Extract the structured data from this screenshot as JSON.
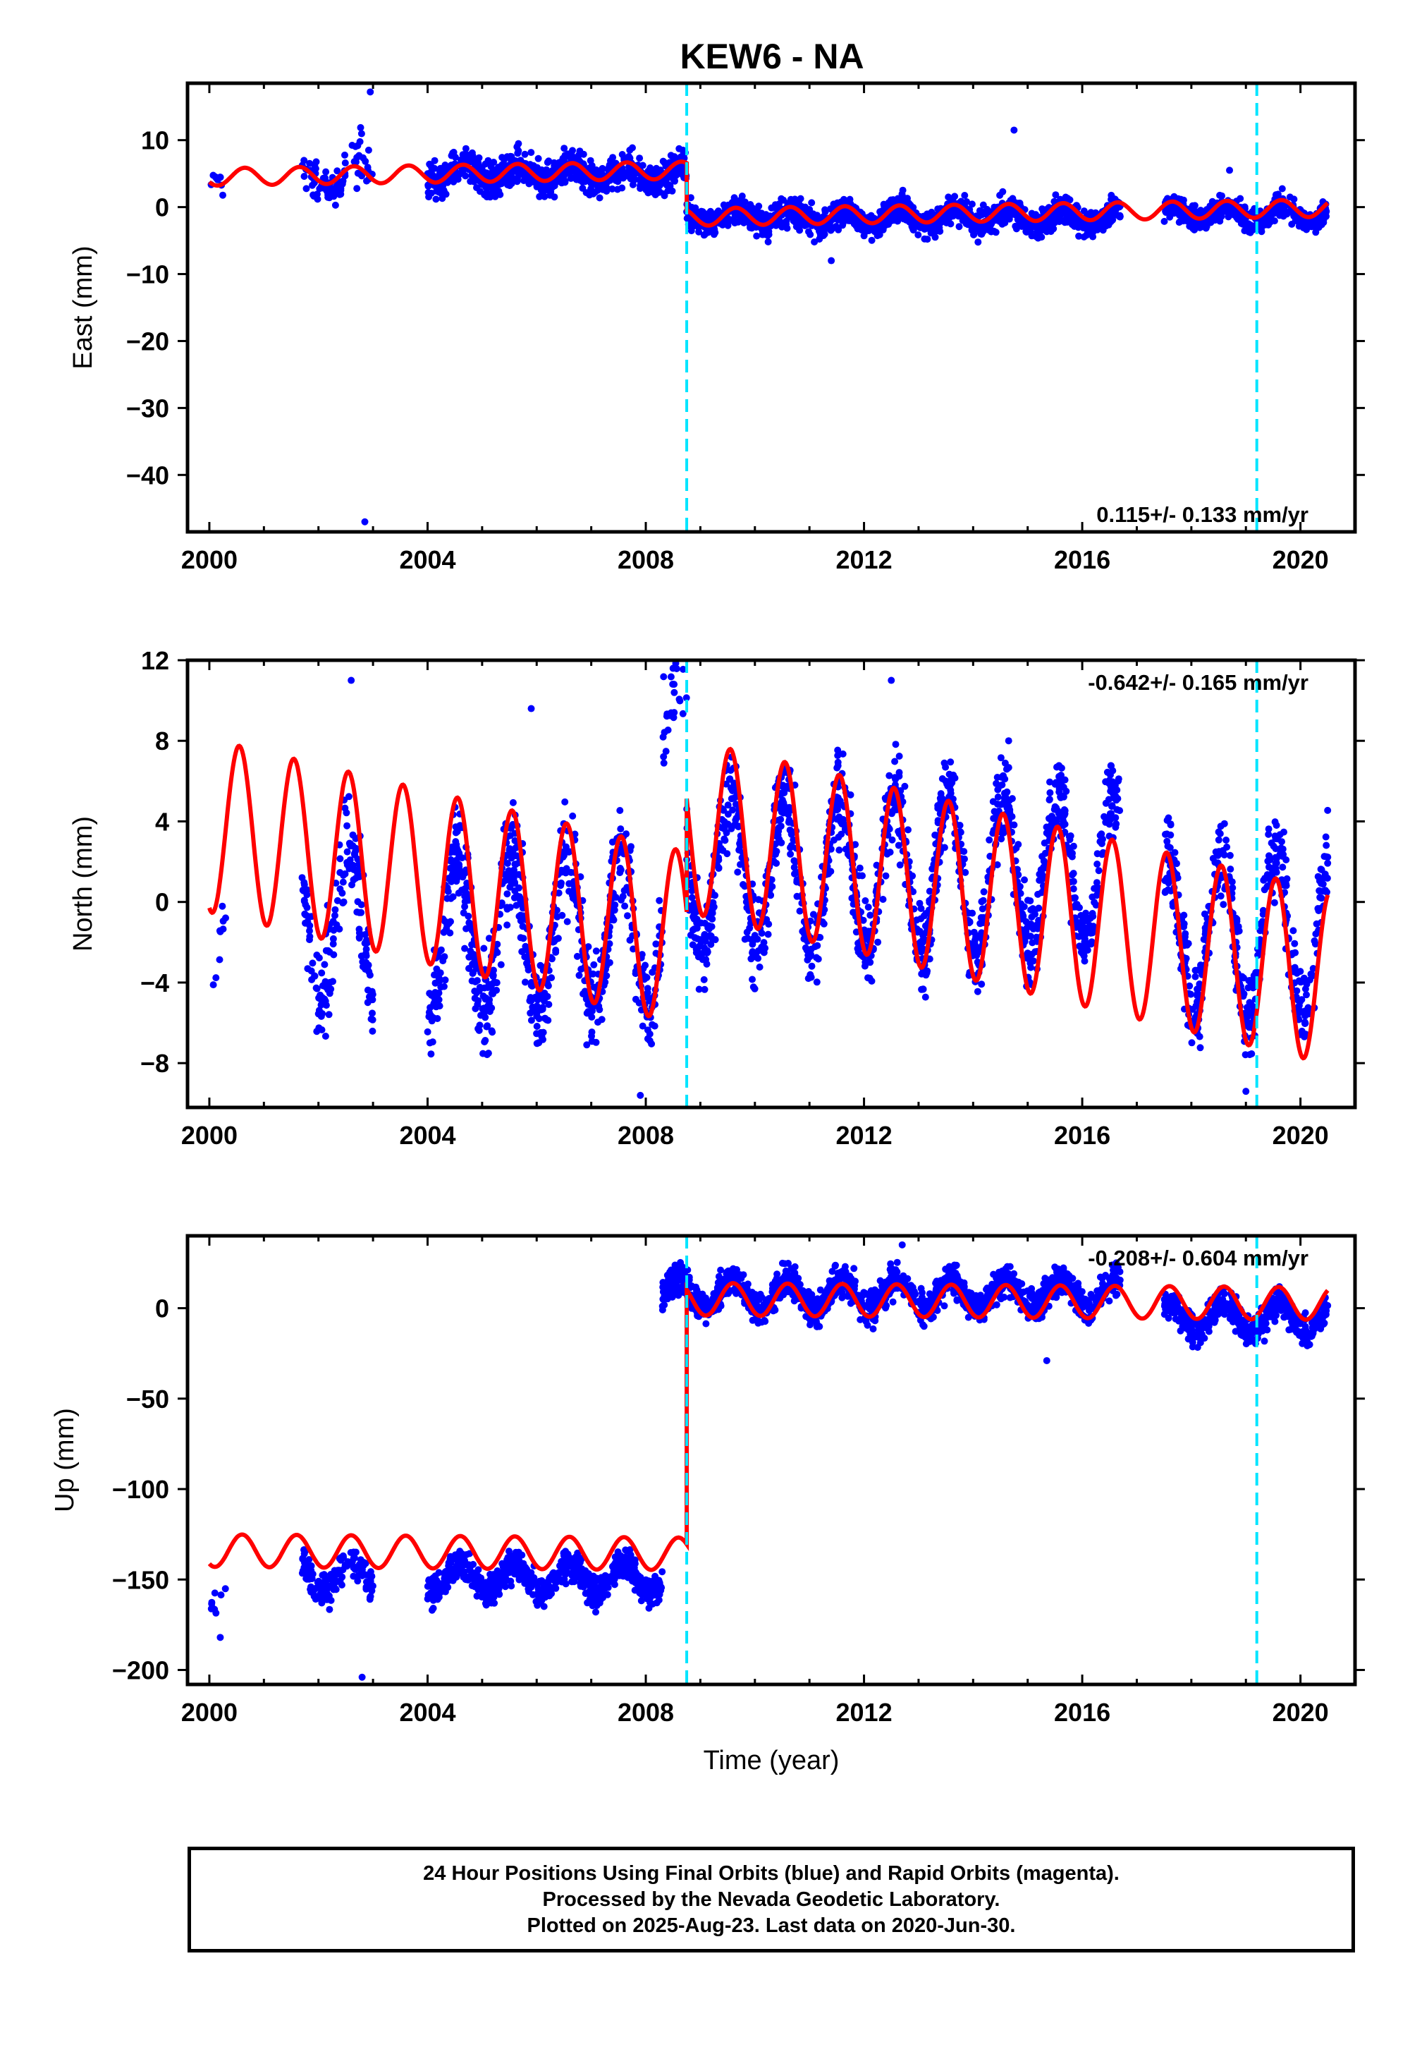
{
  "title": "KEW6 - NA",
  "colors": {
    "data": "#0000ff",
    "model": "#ff0000",
    "offset": "#00e5ff",
    "frame": "#000000"
  },
  "chart_data": [
    {
      "type": "scatter",
      "ylabel": "East (mm)",
      "xlabel": "",
      "xlim": [
        1999.6,
        2021.0
      ],
      "ylim": [
        -48.5,
        18.5
      ],
      "xticks": [
        2000,
        2004,
        2008,
        2012,
        2016,
        2020
      ],
      "xtick_labels": [
        "2000",
        "2004",
        "2008",
        "2012",
        "2016",
        "2020"
      ],
      "yticks": [
        10,
        0,
        -10,
        -20,
        -30,
        -40
      ],
      "ytick_labels": [
        "10",
        "0",
        "−10",
        "−20",
        "−30",
        "−40"
      ],
      "rate_label": "0.115+/- 0.133 mm/yr",
      "offsets": [
        2008.75,
        2019.2
      ],
      "model_segments": [
        {
          "start": 2000.0,
          "end": 2008.75,
          "base": 4.5,
          "trend": 0.115,
          "amplitude": 1.3,
          "phase": 0.4
        },
        {
          "start": 2008.75,
          "end": 2020.5,
          "base": -1.5,
          "trend": 0.115,
          "amplitude": 1.3,
          "phase": 0.4
        }
      ],
      "data_segments": [
        {
          "start": 2000.0,
          "end": 2000.3,
          "center": 4.5,
          "spread": 1.5,
          "density": 30
        },
        {
          "start": 2001.7,
          "end": 2002.5,
          "center": 4.0,
          "spread": 2.0,
          "density": 80
        },
        {
          "start": 2002.6,
          "end": 2003.0,
          "center": 6.5,
          "spread": 3.0,
          "density": 60
        },
        {
          "start": 2004.0,
          "end": 2008.75,
          "center": 5.0,
          "spread": 1.8,
          "density": 160
        },
        {
          "start": 2008.75,
          "end": 2016.7,
          "center": -1.5,
          "spread": 1.5,
          "density": 160
        },
        {
          "start": 2017.5,
          "end": 2020.5,
          "center": -1.0,
          "spread": 1.3,
          "density": 150
        }
      ],
      "outliers": [
        {
          "x": 2002.85,
          "y": -47.0
        },
        {
          "x": 2002.95,
          "y": 17.2
        },
        {
          "x": 2014.75,
          "y": 11.5
        },
        {
          "x": 2011.4,
          "y": -8.0
        },
        {
          "x": 2018.7,
          "y": 5.5
        }
      ]
    },
    {
      "type": "scatter",
      "ylabel": "North (mm)",
      "xlabel": "",
      "xlim": [
        1999.6,
        2021.0
      ],
      "ylim": [
        -10.2,
        12.0
      ],
      "xticks": [
        2000,
        2004,
        2008,
        2012,
        2016,
        2020
      ],
      "xtick_labels": [
        "2000",
        "2004",
        "2008",
        "2012",
        "2016",
        "2020"
      ],
      "yticks": [
        12,
        8,
        4,
        0,
        -4,
        -8
      ],
      "ytick_labels": [
        "12",
        "8",
        "4",
        "0",
        "−4",
        "−8"
      ],
      "rate_label": "-0.642+/- 0.165 mm/yr",
      "offsets": [
        2008.75,
        2019.2
      ],
      "model_segments": [
        {
          "start": 2000.0,
          "end": 2008.75,
          "base": 3.8,
          "trend": -0.642,
          "amplitude": 4.3,
          "phase": 0.3
        },
        {
          "start": 2008.75,
          "end": 2020.5,
          "base": 3.8,
          "trend": -0.642,
          "amplitude": 4.3,
          "phase": 0.3
        }
      ],
      "data_segments": [
        {
          "start": 2000.0,
          "end": 2000.3,
          "center": 0.0,
          "spread": 1.5,
          "density": 30
        },
        {
          "start": 2001.7,
          "end": 2003.0,
          "center": -1.0,
          "spread": 1.8,
          "density": 120
        },
        {
          "start": 2004.0,
          "end": 2008.3,
          "center": -1.5,
          "spread": 1.8,
          "density": 160
        },
        {
          "start": 2008.3,
          "end": 2008.75,
          "center": 7.5,
          "spread": 1.5,
          "density": 60
        },
        {
          "start": 2008.75,
          "end": 2016.7,
          "center": 1.5,
          "spread": 1.6,
          "density": 160
        },
        {
          "start": 2017.5,
          "end": 2020.5,
          "center": -1.5,
          "spread": 1.6,
          "density": 150
        }
      ],
      "outliers": [
        {
          "x": 2002.6,
          "y": 11.0
        },
        {
          "x": 2008.5,
          "y": 11.6
        },
        {
          "x": 2012.5,
          "y": 11.0
        },
        {
          "x": 2005.9,
          "y": 9.6
        },
        {
          "x": 2007.9,
          "y": -9.6
        },
        {
          "x": 2019.0,
          "y": -9.4
        }
      ]
    },
    {
      "type": "scatter",
      "ylabel": "Up (mm)",
      "xlabel": "Time (year)",
      "xlim": [
        1999.6,
        2021.0
      ],
      "ylim": [
        -208.0,
        40.0
      ],
      "xticks": [
        2000,
        2004,
        2008,
        2012,
        2016,
        2020
      ],
      "xtick_labels": [
        "2000",
        "2004",
        "2008",
        "2012",
        "2016",
        "2020"
      ],
      "yticks": [
        0,
        -50,
        -100,
        -150,
        -200
      ],
      "ytick_labels": [
        "0",
        "−50",
        "−100",
        "−150",
        "−200"
      ],
      "rate_label": "-0.208+/- 0.604 mm/yr",
      "offsets": [
        2008.75,
        2019.2
      ],
      "model_segments": [
        {
          "start": 2000.0,
          "end": 2008.75,
          "base": -134.0,
          "trend": -0.208,
          "amplitude": 9.0,
          "phase": 0.35
        },
        {
          "start": 2008.75,
          "end": 2020.5,
          "base": 5.0,
          "trend": -0.208,
          "amplitude": 9.0,
          "phase": 0.35
        }
      ],
      "data_segments": [
        {
          "start": 2000.0,
          "end": 2000.3,
          "center": -158.0,
          "spread": 6.0,
          "density": 30
        },
        {
          "start": 2001.7,
          "end": 2003.0,
          "center": -148.0,
          "spread": 7.0,
          "density": 110
        },
        {
          "start": 2004.0,
          "end": 2008.3,
          "center": -149.0,
          "spread": 6.0,
          "density": 170
        },
        {
          "start": 2008.3,
          "end": 2016.7,
          "center": 8.0,
          "spread": 6.5,
          "density": 160
        },
        {
          "start": 2017.5,
          "end": 2020.5,
          "center": -5.0,
          "spread": 6.0,
          "density": 160
        }
      ],
      "outliers": [
        {
          "x": 2002.8,
          "y": -204.0
        },
        {
          "x": 2000.2,
          "y": -182.0
        },
        {
          "x": 2015.35,
          "y": -29.0
        },
        {
          "x": 2012.7,
          "y": 35.0
        }
      ]
    }
  ],
  "caption": {
    "line1": "24 Hour Positions Using Final Orbits (blue) and Rapid Orbits (magenta).",
    "line2": "Processed by the Nevada Geodetic Laboratory.",
    "line3": "Plotted on 2025-Aug-23. Last data on 2020-Jun-30."
  }
}
